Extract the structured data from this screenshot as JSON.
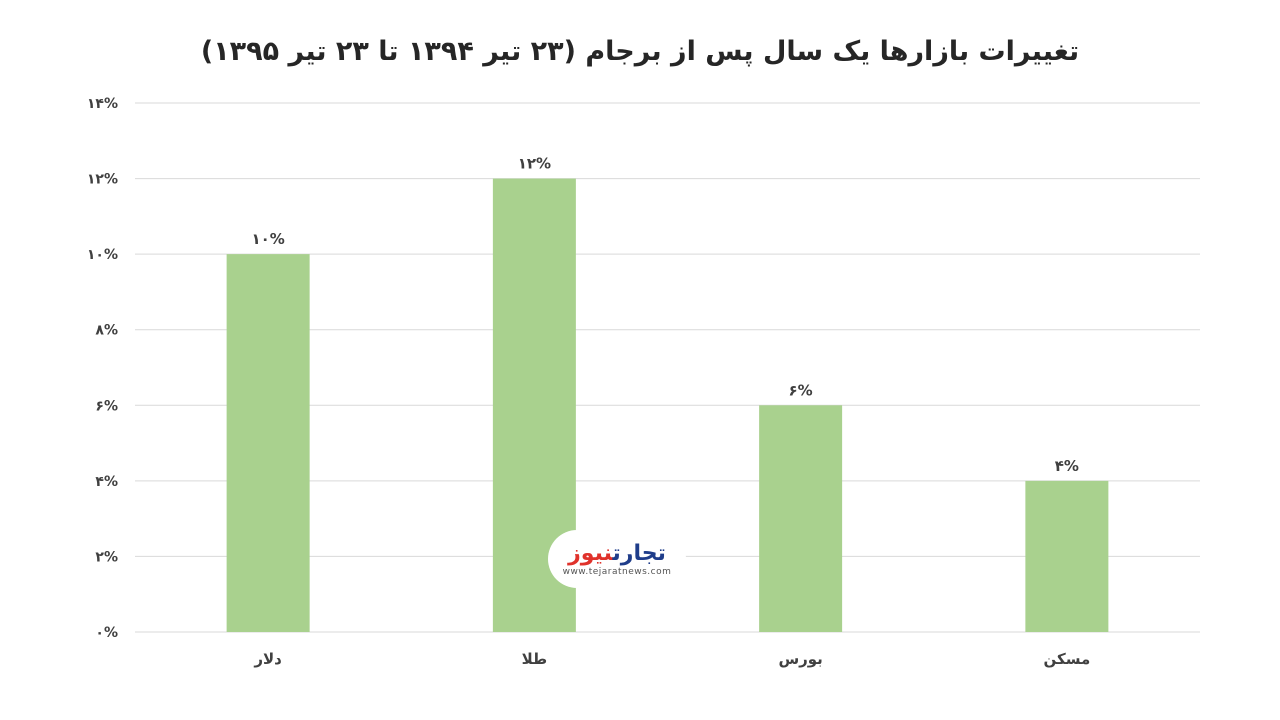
{
  "title": "تغییرات بازارها یک سال پس از برجام (۲۳ تیر ۱۳۹۴ تا ۲۳ تیر ۱۳۹۵)",
  "logo": {
    "name_part1": "تجارت",
    "name_part2": "نیوز",
    "url": "www.tejaratnews.com"
  },
  "chart_data": {
    "type": "bar",
    "title": "تغییرات بازارها یک سال پس از برجام (۲۳ تیر ۱۳۹۴ تا ۲۳ تیر ۱۳۹۵)",
    "categories": [
      "دلار",
      "طلا",
      "بورس",
      "مسکن"
    ],
    "values": [
      10,
      12,
      6,
      4
    ],
    "value_labels": [
      "۱۰%",
      "۱۲%",
      "۶%",
      "۴%"
    ],
    "ylim": [
      0,
      14
    ],
    "y_ticks": [
      0,
      2,
      4,
      6,
      8,
      10,
      12,
      14
    ],
    "y_tick_labels": [
      "۰%",
      "۲%",
      "۴%",
      "۶%",
      "۸%",
      "۱۰%",
      "۱۲%",
      "۱۴%"
    ],
    "xlabel": "",
    "ylabel": "",
    "grid": true,
    "legend": "none",
    "bar_color": "#a9d18e",
    "grid_color": "#d9d9d9"
  }
}
